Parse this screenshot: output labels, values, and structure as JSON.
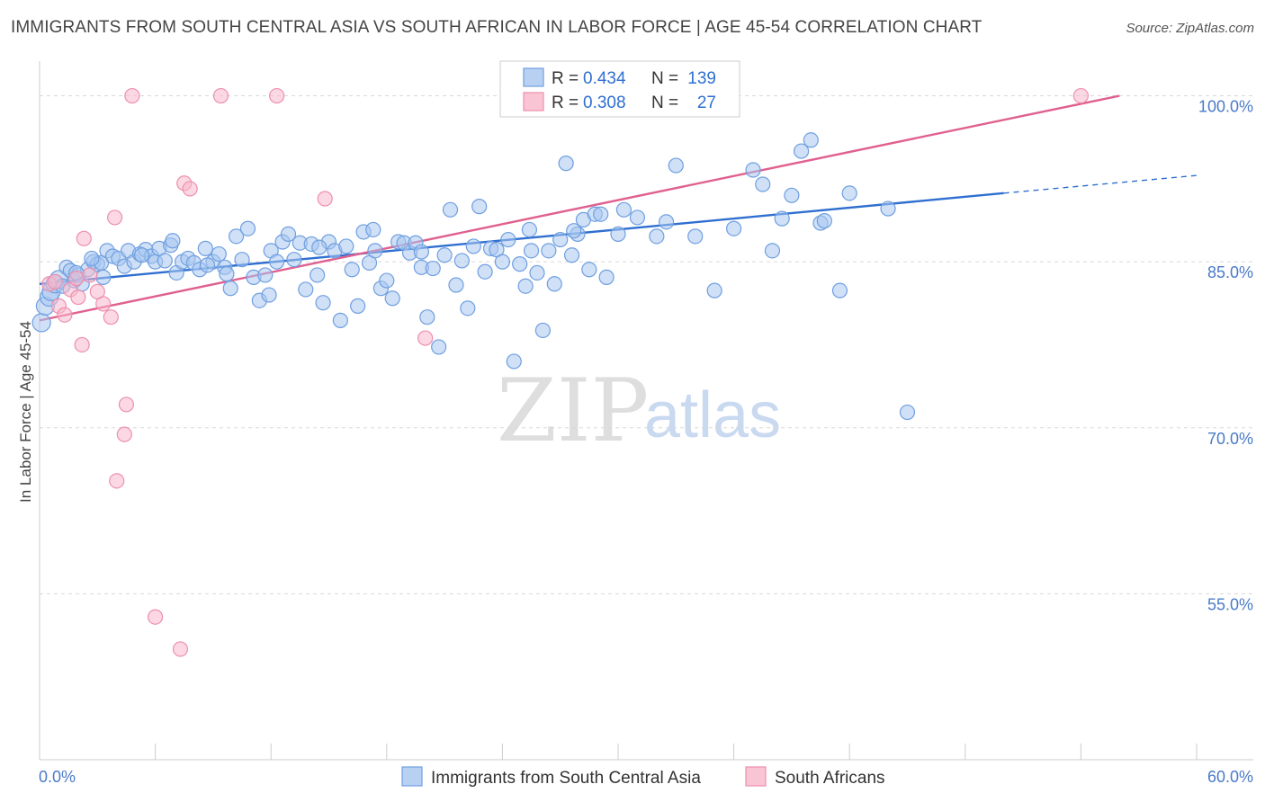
{
  "title": "IMMIGRANTS FROM SOUTH CENTRAL ASIA VS SOUTH AFRICAN IN LABOR FORCE | AGE 45-54 CORRELATION CHART",
  "source": "Source: ZipAtlas.com",
  "watermark": {
    "zip": "ZIP",
    "atlas": "atlas"
  },
  "colors": {
    "blue_fill": "#a8c6f0",
    "blue_stroke": "#6f9fe0",
    "blue_line": "#2f6fd0",
    "pink_fill": "#f7b8cc",
    "pink_stroke": "#ee8fad",
    "pink_line": "#e0608f",
    "grid": "#d8d8d8",
    "tick_label": "#4a7ac8"
  },
  "legend": {
    "r_label": "R =",
    "n_label": "N =",
    "blue": {
      "r": "0.434",
      "n": "139"
    },
    "pink": {
      "r": "0.308",
      "n": "27"
    }
  },
  "chart_data": {
    "type": "scatter",
    "title": "IMMIGRANTS FROM SOUTH CENTRAL ASIA VS SOUTH AFRICAN IN LABOR FORCE | AGE 45-54 CORRELATION CHART",
    "xlabel": "",
    "ylabel": "In Labor Force | Age 45-54",
    "xlim": [
      0,
      60
    ],
    "ylim": [
      40,
      105
    ],
    "x_tick_labels": [
      "0.0%",
      "60.0%"
    ],
    "y_ticks": [
      55,
      70,
      85,
      100
    ],
    "y_tick_labels": [
      "55.0%",
      "70.0%",
      "85.0%",
      "100.0%"
    ],
    "grid": true,
    "legend_position": "top-center",
    "series": [
      {
        "name": "Immigrants from South Central Asia",
        "color": "#6f9fe0",
        "trend": {
          "x0": 0,
          "y0": 83.0,
          "x1": 50.0,
          "y1": 91.2,
          "dash_to_x": 60.0,
          "dash_to_y": 92.8
        },
        "points": [
          [
            0.1,
            79.5
          ],
          [
            0.3,
            81.0
          ],
          [
            0.5,
            81.8
          ],
          [
            0.6,
            82.3
          ],
          [
            0.8,
            83.0
          ],
          [
            1.0,
            83.4
          ],
          [
            1.2,
            82.8
          ],
          [
            1.4,
            84.5
          ],
          [
            1.6,
            84.2
          ],
          [
            1.8,
            83.3
          ],
          [
            2.0,
            83.8
          ],
          [
            2.2,
            83.0
          ],
          [
            2.5,
            84.3
          ],
          [
            2.8,
            85.0
          ],
          [
            3.0,
            84.8
          ],
          [
            3.2,
            84.9
          ],
          [
            3.5,
            86.0
          ],
          [
            3.8,
            85.5
          ],
          [
            4.1,
            85.3
          ],
          [
            4.4,
            84.6
          ],
          [
            4.6,
            86.0
          ],
          [
            4.9,
            85.0
          ],
          [
            5.2,
            85.7
          ],
          [
            5.5,
            86.1
          ],
          [
            5.8,
            85.5
          ],
          [
            6.0,
            85.0
          ],
          [
            6.2,
            86.2
          ],
          [
            6.5,
            85.1
          ],
          [
            6.8,
            86.5
          ],
          [
            7.1,
            84.0
          ],
          [
            7.4,
            85.0
          ],
          [
            7.7,
            85.3
          ],
          [
            8.0,
            84.9
          ],
          [
            8.3,
            84.3
          ],
          [
            8.6,
            86.2
          ],
          [
            9.0,
            85.0
          ],
          [
            9.3,
            85.7
          ],
          [
            9.6,
            84.5
          ],
          [
            9.9,
            82.6
          ],
          [
            10.2,
            87.3
          ],
          [
            10.5,
            85.2
          ],
          [
            10.8,
            88.0
          ],
          [
            11.1,
            83.6
          ],
          [
            11.4,
            81.5
          ],
          [
            11.7,
            83.8
          ],
          [
            12.0,
            86.0
          ],
          [
            12.3,
            85.0
          ],
          [
            12.6,
            86.8
          ],
          [
            12.9,
            87.5
          ],
          [
            13.2,
            85.2
          ],
          [
            13.5,
            86.7
          ],
          [
            13.8,
            82.5
          ],
          [
            14.1,
            86.6
          ],
          [
            14.4,
            83.8
          ],
          [
            14.7,
            81.3
          ],
          [
            15.0,
            86.8
          ],
          [
            15.3,
            86.0
          ],
          [
            15.6,
            79.7
          ],
          [
            15.9,
            86.4
          ],
          [
            16.2,
            84.3
          ],
          [
            16.5,
            81.0
          ],
          [
            16.8,
            87.7
          ],
          [
            17.1,
            84.9
          ],
          [
            17.4,
            86.0
          ],
          [
            17.7,
            82.6
          ],
          [
            18.0,
            83.3
          ],
          [
            18.3,
            81.7
          ],
          [
            18.6,
            86.8
          ],
          [
            18.9,
            86.7
          ],
          [
            19.2,
            85.8
          ],
          [
            19.5,
            86.7
          ],
          [
            19.8,
            84.5
          ],
          [
            20.1,
            80.0
          ],
          [
            20.4,
            84.4
          ],
          [
            20.7,
            77.3
          ],
          [
            21.0,
            85.6
          ],
          [
            21.3,
            89.7
          ],
          [
            21.6,
            82.9
          ],
          [
            21.9,
            85.1
          ],
          [
            22.2,
            80.8
          ],
          [
            22.5,
            86.4
          ],
          [
            22.8,
            90.0
          ],
          [
            23.1,
            84.1
          ],
          [
            23.4,
            86.2
          ],
          [
            23.7,
            86.1
          ],
          [
            24.0,
            85.0
          ],
          [
            24.3,
            87.0
          ],
          [
            24.6,
            76.0
          ],
          [
            24.9,
            84.8
          ],
          [
            25.2,
            82.8
          ],
          [
            25.5,
            86.0
          ],
          [
            25.8,
            84.0
          ],
          [
            26.1,
            78.8
          ],
          [
            26.4,
            86.0
          ],
          [
            26.7,
            83.0
          ],
          [
            27.0,
            87.0
          ],
          [
            27.3,
            93.9
          ],
          [
            27.6,
            85.6
          ],
          [
            27.9,
            87.5
          ],
          [
            28.2,
            88.8
          ],
          [
            28.5,
            84.3
          ],
          [
            28.8,
            89.3
          ],
          [
            29.1,
            89.3
          ],
          [
            29.4,
            83.6
          ],
          [
            30.0,
            87.5
          ],
          [
            31.0,
            89.0
          ],
          [
            32.0,
            87.3
          ],
          [
            32.5,
            88.6
          ],
          [
            33.0,
            93.7
          ],
          [
            34.0,
            87.3
          ],
          [
            35.0,
            82.4
          ],
          [
            36.0,
            88.0
          ],
          [
            37.0,
            93.3
          ],
          [
            37.5,
            92.0
          ],
          [
            38.0,
            86.0
          ],
          [
            38.5,
            88.9
          ],
          [
            39.0,
            91.0
          ],
          [
            39.5,
            95.0
          ],
          [
            40.0,
            96.0
          ],
          [
            40.5,
            88.5
          ],
          [
            41.5,
            82.4
          ],
          [
            42.0,
            91.2
          ],
          [
            44.0,
            89.8
          ],
          [
            45.0,
            71.4
          ],
          [
            30.3,
            89.7
          ],
          [
            27.7,
            87.8
          ],
          [
            25.4,
            87.9
          ],
          [
            19.8,
            85.9
          ],
          [
            17.3,
            87.9
          ],
          [
            14.5,
            86.3
          ],
          [
            11.9,
            82.0
          ],
          [
            9.7,
            83.9
          ],
          [
            8.7,
            84.7
          ],
          [
            6.9,
            86.9
          ],
          [
            5.3,
            85.6
          ],
          [
            3.3,
            83.6
          ],
          [
            2.7,
            85.3
          ],
          [
            1.9,
            84.0
          ],
          [
            40.7,
            88.7
          ]
        ]
      },
      {
        "name": "South Africans",
        "color": "#ee8fad",
        "trend": {
          "x0": 0,
          "y0": 79.7,
          "x1": 56.0,
          "y1": 100.0
        },
        "points": [
          [
            0.5,
            83.0
          ],
          [
            0.8,
            83.2
          ],
          [
            1.0,
            81.0
          ],
          [
            1.3,
            80.2
          ],
          [
            1.6,
            82.5
          ],
          [
            1.9,
            83.5
          ],
          [
            2.0,
            81.8
          ],
          [
            2.2,
            77.5
          ],
          [
            2.3,
            87.1
          ],
          [
            2.6,
            83.8
          ],
          [
            3.0,
            82.3
          ],
          [
            3.3,
            81.2
          ],
          [
            3.7,
            80.0
          ],
          [
            3.9,
            89.0
          ],
          [
            4.5,
            72.1
          ],
          [
            4.4,
            69.4
          ],
          [
            4.0,
            65.2
          ],
          [
            4.8,
            100.0
          ],
          [
            6.0,
            52.9
          ],
          [
            7.3,
            50.0
          ],
          [
            7.5,
            92.1
          ],
          [
            7.8,
            91.6
          ],
          [
            9.4,
            100.0
          ],
          [
            12.3,
            100.0
          ],
          [
            14.8,
            90.7
          ],
          [
            20.0,
            78.1
          ],
          [
            54.0,
            100.0
          ]
        ]
      }
    ]
  },
  "bottom_legend": [
    "Immigrants from South Central Asia",
    "South Africans"
  ]
}
